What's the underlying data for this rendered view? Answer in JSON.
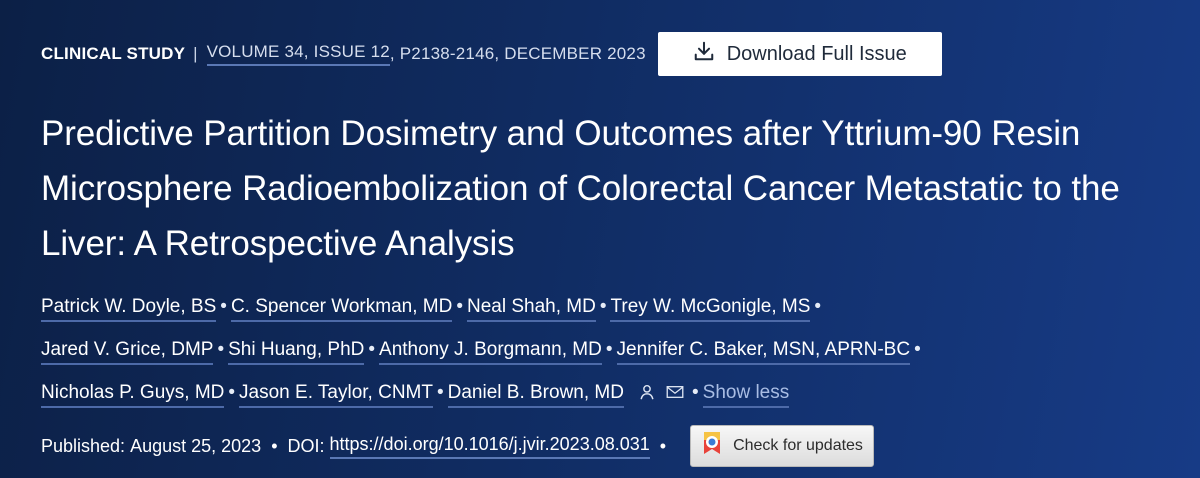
{
  "meta": {
    "article_type": "CLINICAL STUDY",
    "separator": "|",
    "volume_issue": "VOLUME 34, ISSUE 12",
    "pages_date": ", P2138-2146, DECEMBER 2023",
    "download_label": "Download Full Issue"
  },
  "article": {
    "title": "Predictive Partition Dosimetry and Outcomes after Yttrium-90 Resin Microsphere Radioembolization of Colorectal Cancer Metastatic to the Liver: A Retrospective Analysis"
  },
  "authors": [
    "Patrick W. Doyle, BS",
    "C. Spencer Workman, MD",
    "Neal Shah, MD",
    "Trey W. McGonigle, MS",
    "Jared V. Grice, DMP",
    "Shi Huang, PhD",
    "Anthony J. Borgmann, MD",
    "Jennifer C. Baker, MSN, APRN-BC",
    "Nicholas P. Guys, MD",
    "Jason E. Taylor, CNMT",
    "Daniel B. Brown, MD"
  ],
  "author_toggle": "Show less",
  "bullet": "•",
  "publication": {
    "published_label": "Published:",
    "published_date": "August 25, 2023",
    "doi_label": "DOI:",
    "doi": "https://doi.org/10.1016/j.jvir.2023.08.031",
    "check_updates_label": "Check for updates"
  },
  "icons": {
    "download": "download-icon",
    "person": "person-icon",
    "mail": "mail-icon",
    "crossmark": "crossmark-icon"
  },
  "colors": {
    "background_start": "#0c2046",
    "background_end": "#173b86",
    "link_underline": "#4d6aa8",
    "show_less": "#a9bde4"
  }
}
